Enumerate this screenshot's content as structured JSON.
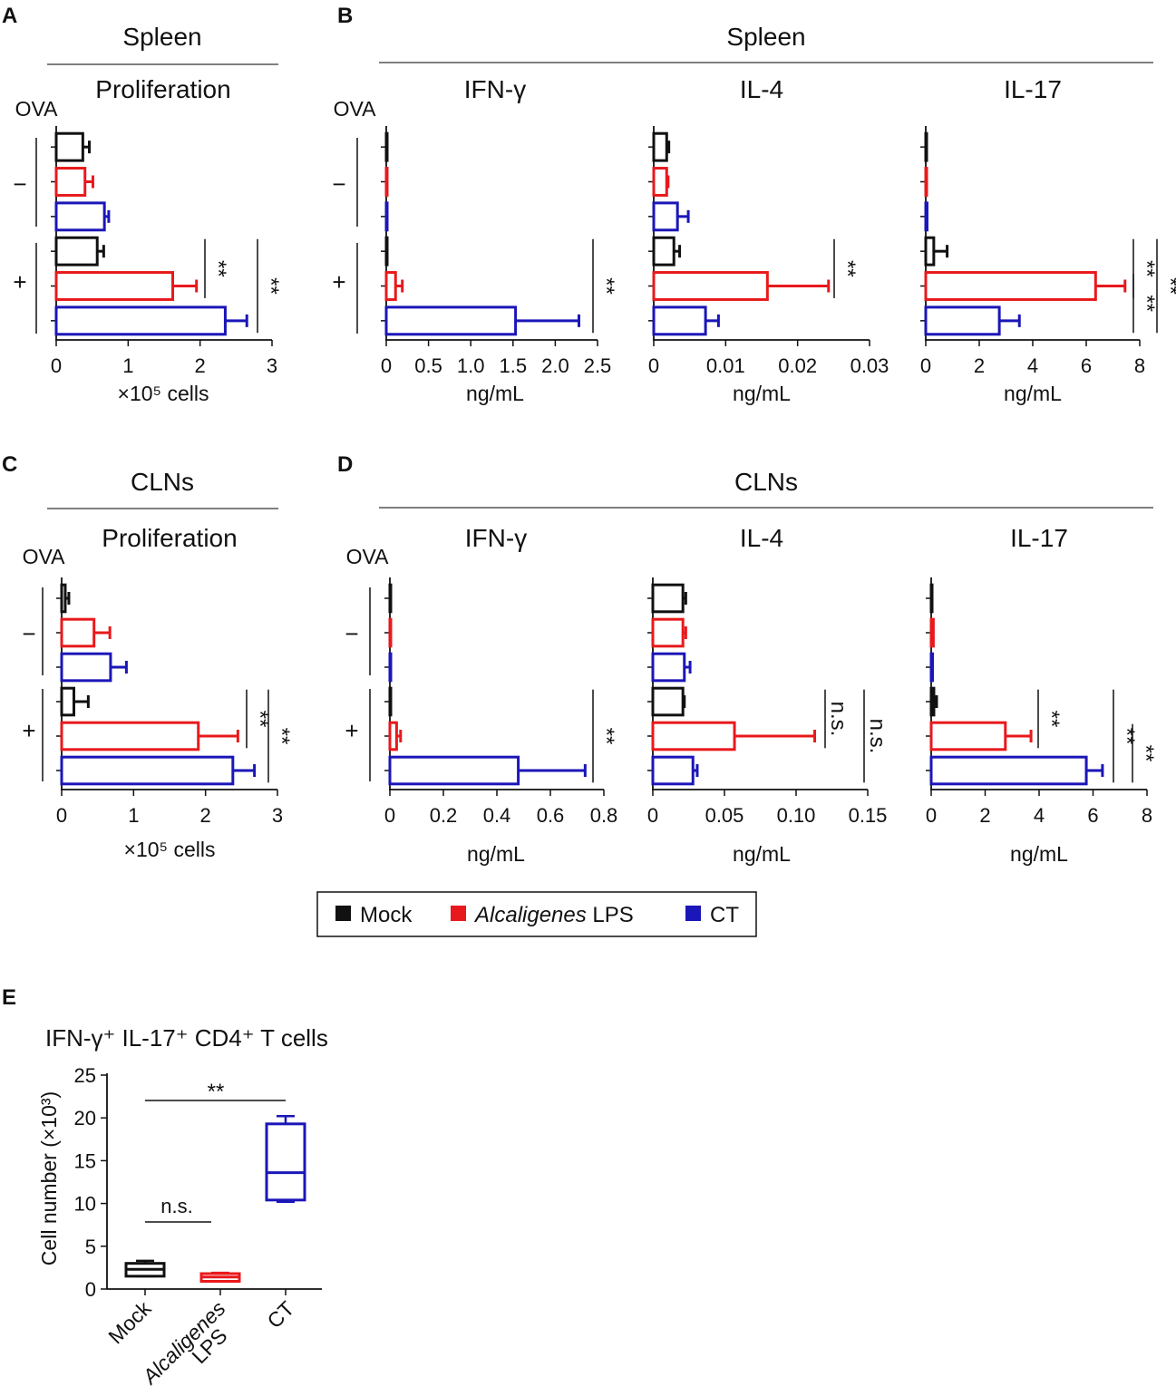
{
  "colors": {
    "mock": "#111111",
    "lps": "#e8191c",
    "ct": "#1b16b8"
  },
  "legend": [
    {
      "key": "mock",
      "label": "Mock",
      "italic": ""
    },
    {
      "key": "lps",
      "label": " LPS",
      "italic": "Alcaligenes"
    },
    {
      "key": "ct",
      "label": "CT",
      "italic": ""
    }
  ],
  "row_labels": {
    "ova": "OVA",
    "minus": "−",
    "plus": "+"
  },
  "chart_data": [
    {
      "id": "A",
      "panel_label": "A",
      "group_title": "Spleen",
      "subtitle": "Proliferation",
      "type": "bar",
      "orientation": "horizontal",
      "xlabel": "×10⁵ cells",
      "xlim": [
        0,
        3
      ],
      "ticks": [
        0,
        1,
        2,
        3
      ],
      "tick_labels": [
        "0",
        "1",
        "2",
        "3"
      ],
      "rows": [
        "OVA− Mock",
        "OVA− Alcaligenes LPS",
        "OVA− CT",
        "OVA+ Mock",
        "OVA+ Alcaligenes LPS",
        "OVA+ CT"
      ],
      "values": [
        0.37,
        0.4,
        0.67,
        0.57,
        1.62,
        2.35
      ],
      "errors": [
        0.09,
        0.11,
        0.06,
        0.09,
        0.33,
        0.3
      ],
      "sig": [
        {
          "label": "**",
          "from": 3,
          "to": 4
        },
        {
          "label": "**",
          "from": 3,
          "to": 5
        }
      ]
    },
    {
      "id": "B1",
      "panel_label": "B",
      "group_title": "Spleen",
      "subtitle": "IFN-γ",
      "type": "bar",
      "orientation": "horizontal",
      "xlabel": "ng/mL",
      "xlim": [
        0,
        2.5
      ],
      "ticks": [
        0,
        0.5,
        1.0,
        1.5,
        2.0,
        2.5
      ],
      "tick_labels": [
        "0",
        "0.5",
        "1.0",
        "1.5",
        "2.0",
        "2.5"
      ],
      "rows": [
        "OVA− Mock",
        "OVA− Alcaligenes LPS",
        "OVA− CT",
        "OVA+ Mock",
        "OVA+ Alcaligenes LPS",
        "OVA+ CT"
      ],
      "values": [
        0.005,
        0.005,
        0.01,
        0.005,
        0.11,
        1.53
      ],
      "errors": [
        0,
        0,
        0,
        0,
        0.08,
        0.75
      ],
      "sig": [
        {
          "label": "**",
          "from": 3,
          "to": 5
        }
      ]
    },
    {
      "id": "B2",
      "subtitle": "IL-4",
      "type": "bar",
      "orientation": "horizontal",
      "xlabel": "ng/mL",
      "xlim": [
        0,
        0.03
      ],
      "ticks": [
        0,
        0.01,
        0.02,
        0.03
      ],
      "tick_labels": [
        "0",
        "0.01",
        "0.02",
        "0.03"
      ],
      "rows": [
        "OVA− Mock",
        "OVA− Alcaligenes LPS",
        "OVA− CT",
        "OVA+ Mock",
        "OVA+ Alcaligenes LPS",
        "OVA+ CT"
      ],
      "values": [
        0.0018,
        0.0018,
        0.0033,
        0.0028,
        0.0158,
        0.0072
      ],
      "errors": [
        0.0003,
        0.0002,
        0.0015,
        0.0008,
        0.0085,
        0.0018
      ],
      "sig": [
        {
          "label": "**",
          "from": 3,
          "to": 4
        }
      ]
    },
    {
      "id": "B3",
      "subtitle": "IL-17",
      "type": "bar",
      "orientation": "horizontal",
      "xlabel": "ng/mL",
      "xlim": [
        0,
        8
      ],
      "ticks": [
        0,
        2,
        4,
        6,
        8
      ],
      "tick_labels": [
        "0",
        "2",
        "4",
        "6",
        "8"
      ],
      "rows": [
        "OVA− Mock",
        "OVA− Alcaligenes LPS",
        "OVA− CT",
        "OVA+ Mock",
        "OVA+ Alcaligenes LPS",
        "OVA+ CT"
      ],
      "values": [
        0.02,
        0.02,
        0.05,
        0.3,
        6.35,
        2.75
      ],
      "errors": [
        0,
        0,
        0,
        0.5,
        1.1,
        0.75
      ],
      "sig": [
        {
          "label": "**",
          "from": 3,
          "to": 4
        },
        {
          "label": "**",
          "from": 4,
          "to": 5
        },
        {
          "label": "**",
          "from": 3,
          "to": 5
        }
      ]
    },
    {
      "id": "C",
      "panel_label": "C",
      "group_title": "CLNs",
      "subtitle": "Proliferation",
      "type": "bar",
      "orientation": "horizontal",
      "xlabel": "×10⁵ cells",
      "xlim": [
        0,
        3
      ],
      "ticks": [
        0,
        1,
        2,
        3
      ],
      "tick_labels": [
        "0",
        "1",
        "2",
        "3"
      ],
      "rows": [
        "OVA− Mock",
        "OVA− Alcaligenes LPS",
        "OVA− CT",
        "OVA+ Mock",
        "OVA+ Alcaligenes LPS",
        "OVA+ CT"
      ],
      "values": [
        0.05,
        0.45,
        0.68,
        0.17,
        1.9,
        2.38
      ],
      "errors": [
        0.05,
        0.22,
        0.22,
        0.2,
        0.55,
        0.3
      ],
      "sig": [
        {
          "label": "**",
          "from": 3,
          "to": 4
        },
        {
          "label": "**",
          "from": 3,
          "to": 5
        }
      ]
    },
    {
      "id": "D1",
      "panel_label": "D",
      "group_title": "CLNs",
      "subtitle": "IFN-γ",
      "type": "bar",
      "orientation": "horizontal",
      "xlabel": "ng/mL",
      "xlim": [
        0,
        0.8
      ],
      "ticks": [
        0,
        0.2,
        0.4,
        0.6,
        0.8
      ],
      "tick_labels": [
        "0",
        "0.2",
        "0.4",
        "0.6",
        "0.8"
      ],
      "rows": [
        "OVA− Mock",
        "OVA− Alcaligenes LPS",
        "OVA− CT",
        "OVA+ Mock",
        "OVA+ Alcaligenes LPS",
        "OVA+ CT"
      ],
      "values": [
        0.002,
        0.003,
        0.002,
        0.002,
        0.025,
        0.48
      ],
      "errors": [
        0,
        0,
        0,
        0,
        0.015,
        0.25
      ],
      "sig": [
        {
          "label": "**",
          "from": 3,
          "to": 5
        }
      ]
    },
    {
      "id": "D2",
      "subtitle": "IL-4",
      "type": "bar",
      "orientation": "horizontal",
      "xlabel": "ng/mL",
      "xlim": [
        0,
        0.15
      ],
      "ticks": [
        0,
        0.05,
        0.1,
        0.15
      ],
      "tick_labels": [
        "0",
        "0.05",
        "0.10",
        "0.15"
      ],
      "rows": [
        "OVA− Mock",
        "OVA− Alcaligenes LPS",
        "OVA− CT",
        "OVA+ Mock",
        "OVA+ Alcaligenes LPS",
        "OVA+ CT"
      ],
      "values": [
        0.021,
        0.021,
        0.022,
        0.021,
        0.057,
        0.028
      ],
      "errors": [
        0.002,
        0.002,
        0.004,
        0.001,
        0.056,
        0.003
      ],
      "sig": [
        {
          "label": "n.s.",
          "from": 3,
          "to": 4
        },
        {
          "label": "n.s.",
          "from": 3,
          "to": 5
        }
      ]
    },
    {
      "id": "D3",
      "subtitle": "IL-17",
      "type": "bar",
      "orientation": "horizontal",
      "xlabel": "ng/mL",
      "xlim": [
        0,
        8
      ],
      "ticks": [
        0,
        2,
        4,
        6,
        8
      ],
      "tick_labels": [
        "0",
        "2",
        "4",
        "6",
        "8"
      ],
      "rows": [
        "OVA− Mock",
        "OVA− Alcaligenes LPS",
        "OVA− CT",
        "OVA+ Mock",
        "OVA+ Alcaligenes LPS",
        "OVA+ CT"
      ],
      "values": [
        0.02,
        0.08,
        0.05,
        0.1,
        2.75,
        5.75
      ],
      "errors": [
        0,
        0,
        0,
        0.1,
        0.95,
        0.6
      ],
      "sig": [
        {
          "label": "**",
          "from": 3,
          "to": 4
        },
        {
          "label": "**",
          "from": 4,
          "to": 5
        },
        {
          "label": "**",
          "from": 3,
          "to": 5
        }
      ]
    },
    {
      "id": "E",
      "panel_label": "E",
      "title": "IFN-γ⁺ IL-17⁺ CD4⁺ T cells",
      "type": "box",
      "ylabel": "Cell number (×10³)",
      "ylim": [
        0,
        25
      ],
      "ticks": [
        0,
        5,
        10,
        15,
        20,
        25
      ],
      "tick_labels": [
        "0",
        "5",
        "10",
        "15",
        "20",
        "25"
      ],
      "categories": [
        {
          "key": "mock",
          "label": "Mock",
          "italic": ""
        },
        {
          "key": "lps",
          "label": "LPS",
          "italic": "Alcaligenes"
        },
        {
          "key": "ct",
          "label": "CT",
          "italic": ""
        }
      ],
      "boxes": [
        {
          "min": 1.5,
          "q1": 1.5,
          "median": 2.3,
          "q3": 3.0,
          "max": 3.3
        },
        {
          "min": 0.9,
          "q1": 0.9,
          "median": 1.4,
          "q3": 1.8,
          "max": 1.9
        },
        {
          "min": 10.2,
          "q1": 10.4,
          "median": 13.6,
          "q3": 19.3,
          "max": 20.2
        }
      ],
      "sig": [
        {
          "label": "**",
          "from": 0,
          "to": 2
        },
        {
          "label": "n.s.",
          "from": 0,
          "to": 1
        }
      ]
    }
  ]
}
